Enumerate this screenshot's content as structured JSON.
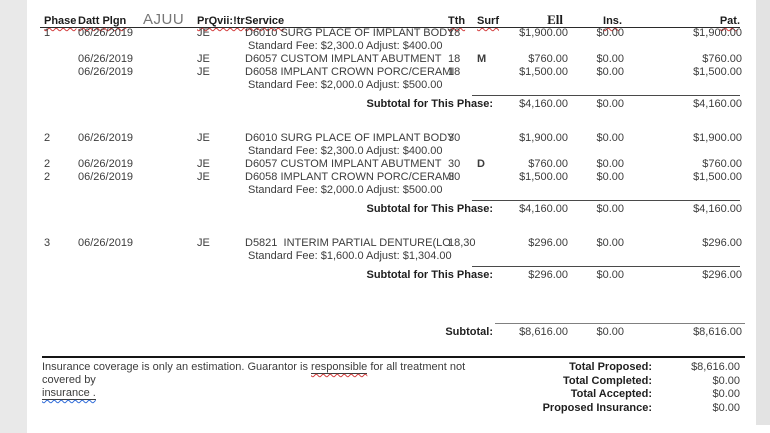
{
  "colors": {
    "page_bg": "#ffffff",
    "margin_strip": "#e9e9e9",
    "text": "#3c3c3c",
    "header_text": "#1c1c1c",
    "spellcheck_red": "#d23b3b",
    "grammar_blue": "#2f6bd7",
    "rule_line": "#2a2a2a"
  },
  "header": {
    "phase": "Phase",
    "date": "Datt Plgn",
    "ajuu": "AJUU",
    "prov": "PrQvii:!tr",
    "service": "Service",
    "tth": "Tth",
    "surf": "Surf",
    "fee": "Ell",
    "ins": "Ins",
    "ins_dot": ".",
    "pat": "Pat",
    "pat_dot": "."
  },
  "phases": [
    {
      "rows": [
        {
          "phase": "1",
          "date": "06/26/2019",
          "prov": "JE",
          "service": "D6010 SURG PLACE OF IMPLANT BODY",
          "tth": "18",
          "surf": "",
          "fee": "$1,900.00",
          "ins": "$0.00",
          "pat": "$1,900.00",
          "note": "Standard Fee: $2,300.0 Adjust: $400.00"
        },
        {
          "phase": "",
          "date": "06/26/2019",
          "prov": "JE",
          "service": "D6057 CUSTOM IMPLANT ABUTMENT",
          "tth": "18",
          "surf": "M",
          "fee": "$760.00",
          "ins": "$0.00",
          "pat": "$760.00",
          "note": ""
        },
        {
          "phase": "",
          "date": "06/26/2019",
          "prov": "JE",
          "service": "D6058 IMPLANT CROWN PORC/CERAMI",
          "tth": "18",
          "surf": "",
          "fee": "$1,500.00",
          "ins": "$0.00",
          "pat": "$1,500.00",
          "note": "Standard Fee: $2,000.0 Adjust: $500.00"
        }
      ],
      "subtotal": {
        "label": "Subtotal for This Phase:",
        "fee": "$4,160.00",
        "ins": "$0.00",
        "pat": "$4,160.00"
      }
    },
    {
      "rows": [
        {
          "phase": "2",
          "date": "06/26/2019",
          "prov": "JE",
          "service": "D6010 SURG PLACE OF IMPLANT BODY",
          "tth": "30",
          "surf": "",
          "fee": "$1,900.00",
          "ins": "$0.00",
          "pat": "$1,900.00",
          "note": "Standard Fee: $2,300.0 Adjust: $400.00"
        },
        {
          "phase": "2",
          "date": "06/26/2019",
          "prov": "JE",
          "service": "D6057 CUSTOM IMPLANT ABUTMENT",
          "tth": "30",
          "surf": "D",
          "fee": "$760.00",
          "ins": "$0.00",
          "pat": "$760.00",
          "note": ""
        },
        {
          "phase": "2",
          "date": "06/26/2019",
          "prov": "JE",
          "service": "D6058 IMPLANT CROWN PORC/CERAMI",
          "tth": "30",
          "surf": "",
          "fee": "$1,500.00",
          "ins": "$0.00",
          "pat": "$1,500.00",
          "note": "Standard Fee: $2,000.0 Adjust: $500.00"
        }
      ],
      "subtotal": {
        "label": "Subtotal for This Phase:",
        "fee": "$4,160.00",
        "ins": "$0.00",
        "pat": "$4,160.00"
      }
    },
    {
      "rows": [
        {
          "phase": "3",
          "date": "06/26/2019",
          "prov": "JE",
          "service": "D5821  INTERIM PARTIAL DENTURE(LO",
          "tth": "18,30",
          "surf": "",
          "fee": "$296.00",
          "ins": "$0.00",
          "pat": "$296.00",
          "note": "Standard Fee: $1,600.0 Adjust: $1,304.00"
        }
      ],
      "subtotal": {
        "label": "Subtotal for This Phase:",
        "fee": "$296.00",
        "ins": "$0.00",
        "pat": "$296.00"
      }
    }
  ],
  "grand_subtotal": {
    "label": "Subtotal:",
    "fee": "$8,616.00",
    "ins": "$0.00",
    "pat": "$8,616.00"
  },
  "footer": {
    "note_prefix": "Insurance coverage is only an estimation. Guarantor is ",
    "note_responsible": "responsible",
    "note_suffix": " for all treatment not covered by",
    "note_line2": "insurance .",
    "totals": [
      {
        "label": "Total Proposed:",
        "value": "$8,616.00"
      },
      {
        "label": "Total Completed:",
        "value": "$0.00"
      },
      {
        "label": "Total Accepted:",
        "value": "$0.00"
      },
      {
        "label": "Proposed Insurance:",
        "value": "$0.00"
      }
    ]
  }
}
